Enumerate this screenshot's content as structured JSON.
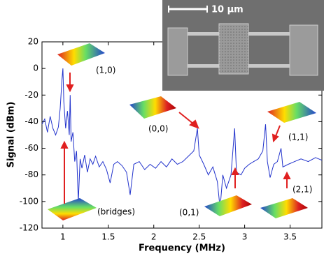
{
  "chart_data": {
    "type": "line",
    "x_label": "Frequency (MHz)",
    "y_label": "Signal (dBm)",
    "xlim": [
      0.77,
      3.85
    ],
    "ylim": [
      -120,
      20
    ],
    "xticks": [
      1,
      1.5,
      2,
      2.5,
      3,
      3.5
    ],
    "yticks": [
      -120,
      -100,
      -80,
      -60,
      -40,
      -20,
      0,
      20
    ],
    "x": [
      0.77,
      0.8,
      0.83,
      0.86,
      0.89,
      0.92,
      0.95,
      0.97,
      0.99,
      1.0,
      1.01,
      1.03,
      1.05,
      1.07,
      1.08,
      1.09,
      1.11,
      1.13,
      1.15,
      1.17,
      1.19,
      1.21,
      1.24,
      1.27,
      1.3,
      1.33,
      1.36,
      1.4,
      1.44,
      1.48,
      1.52,
      1.56,
      1.6,
      1.65,
      1.7,
      1.74,
      1.78,
      1.84,
      1.9,
      1.96,
      2.02,
      2.08,
      2.14,
      2.2,
      2.26,
      2.32,
      2.38,
      2.44,
      2.48,
      2.5,
      2.55,
      2.6,
      2.65,
      2.7,
      2.73,
      2.76,
      2.8,
      2.85,
      2.89,
      2.91,
      2.96,
      3.0,
      3.05,
      3.1,
      3.15,
      3.2,
      3.23,
      3.25,
      3.28,
      3.32,
      3.36,
      3.4,
      3.42,
      3.48,
      3.55,
      3.62,
      3.7,
      3.78,
      3.85
    ],
    "series": [
      {
        "color": "#2233cc",
        "values": [
          -42,
          -38,
          -48,
          -36,
          -45,
          -50,
          -44,
          -30,
          -8,
          0,
          -25,
          -45,
          -32,
          -50,
          -20,
          -55,
          -48,
          -70,
          -62,
          -100,
          -68,
          -75,
          -65,
          -78,
          -68,
          -72,
          -66,
          -74,
          -70,
          -76,
          -86,
          -72,
          -70,
          -73,
          -78,
          -95,
          -72,
          -70,
          -76,
          -72,
          -75,
          -70,
          -74,
          -68,
          -72,
          -70,
          -66,
          -62,
          -45,
          -65,
          -72,
          -80,
          -74,
          -85,
          -105,
          -80,
          -90,
          -80,
          -45,
          -78,
          -80,
          -75,
          -72,
          -70,
          -68,
          -62,
          -42,
          -70,
          -82,
          -72,
          -70,
          -60,
          -74,
          -72,
          -70,
          -68,
          -70,
          -67,
          -69
        ]
      }
    ],
    "annotations": [
      "(1,0)",
      "(0,0)",
      "(1,1)",
      "(bridges)",
      "(0,1)",
      "(2,1)"
    ],
    "inset_label": "10 μm"
  }
}
